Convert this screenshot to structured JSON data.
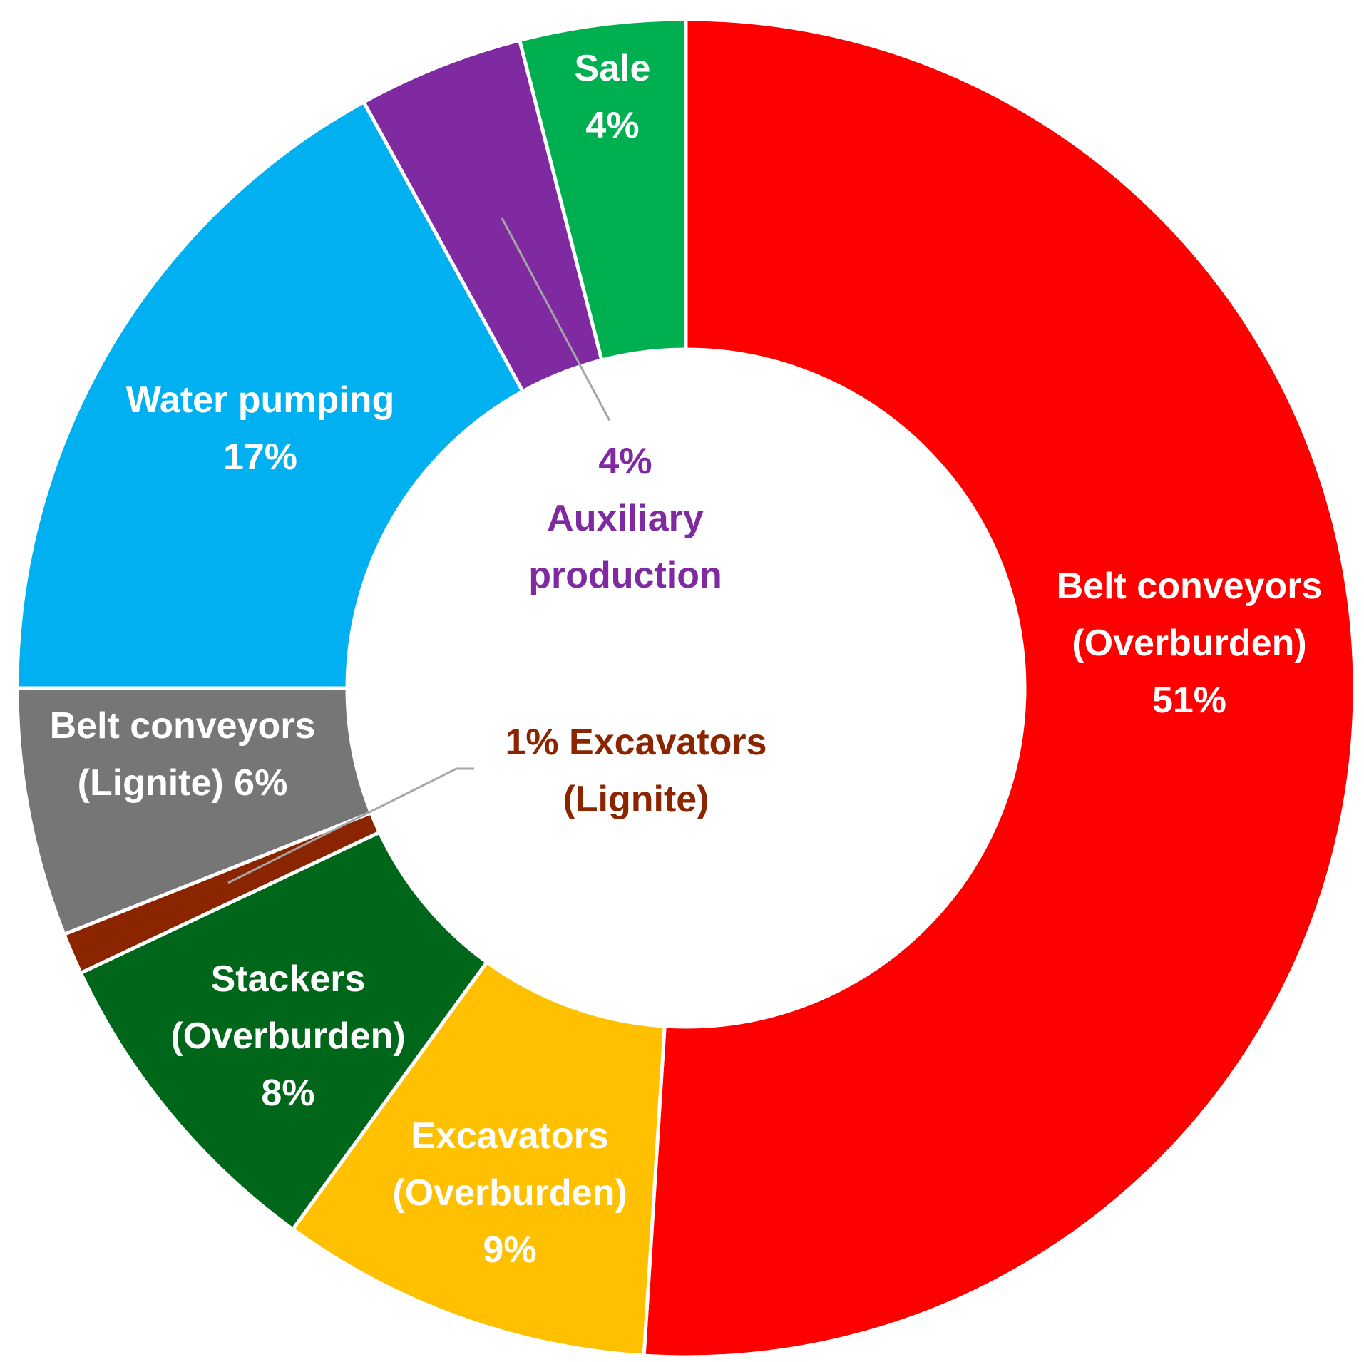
{
  "chart_data": {
    "type": "pie",
    "style": "donut",
    "slices": [
      {
        "label": "Belt conveyors (Overburden)",
        "value": 51,
        "color": "#FF0000",
        "text_color": "#FFFFFF",
        "label_lines": [
          "Belt conveyors",
          "(Overburden)",
          "51%"
        ]
      },
      {
        "label": "Excavators (Overburden)",
        "value": 9,
        "color": "#FFC000",
        "text_color": "#FFFFFF",
        "label_lines": [
          "Excavators",
          "(Overburden)",
          "9%"
        ]
      },
      {
        "label": "Stackers (Overburden)",
        "value": 8,
        "color": "#006619",
        "text_color": "#FFFFFF",
        "label_lines": [
          "Stackers",
          "(Overburden)",
          "8%"
        ]
      },
      {
        "label": "Excavators (Lignite)",
        "value": 1,
        "color": "#8B2500",
        "text_color": "#8B2500",
        "label_lines": [
          "1% Excavators",
          "(Lignite)"
        ]
      },
      {
        "label": "Belt conveyors (Lignite)",
        "value": 6,
        "color": "#767676",
        "text_color": "#FFFFFF",
        "label_lines": [
          "Belt conveyors",
          "(Lignite) 6%"
        ]
      },
      {
        "label": "Water pumping",
        "value": 17,
        "color": "#00B0F0",
        "text_color": "#FFFFFF",
        "label_lines": [
          "Water pumping",
          "17%"
        ]
      },
      {
        "label": "Auxiliary production",
        "value": 4,
        "color": "#7F2AA0",
        "text_color": "#7F2AA0",
        "label_lines": [
          "4%",
          "Auxiliary",
          "production"
        ]
      },
      {
        "label": "Sale",
        "value": 4,
        "color": "#00B050",
        "text_color": "#FFFFFF",
        "label_lines": [
          "Sale",
          "4%"
        ]
      }
    ],
    "start": "12 o'clock",
    "direction": "clockwise"
  }
}
